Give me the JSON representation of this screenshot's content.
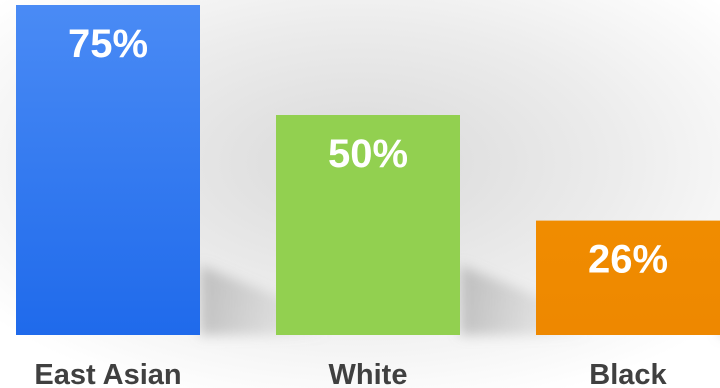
{
  "chart_data": {
    "type": "bar",
    "categories": [
      "East Asian",
      "White",
      "Black"
    ],
    "values": [
      75,
      50,
      26
    ],
    "value_labels": [
      "75%",
      "50%",
      "26%"
    ],
    "colors": [
      "#2E79F2",
      "#92D050",
      "#F08C00"
    ],
    "gradient_top": [
      "#4A8BF5",
      "#92D050",
      "#F08C00"
    ],
    "ylim": [
      0,
      75
    ],
    "grid": false,
    "title": "",
    "xlabel": "",
    "ylabel": "",
    "background": "#F2F2F2",
    "label_color": "#404040"
  }
}
